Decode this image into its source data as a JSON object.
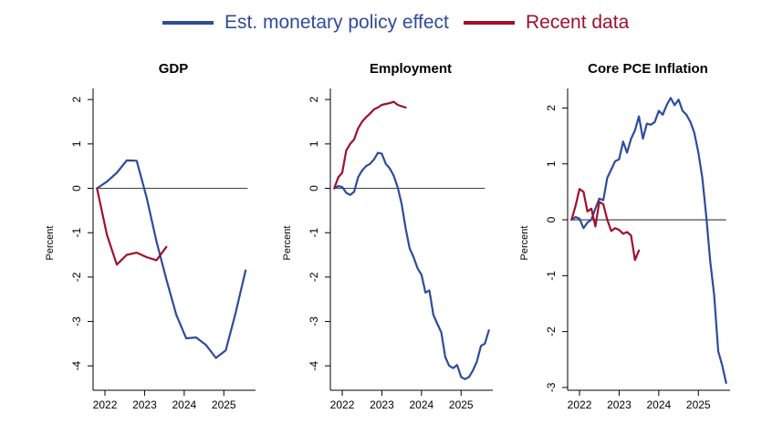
{
  "legend": {
    "policy_label": "Est. monetary policy effect",
    "recent_label": "Recent data",
    "policy_color": "#2E4B9C",
    "recent_color": "#A0102C"
  },
  "chart_data": [
    {
      "type": "line",
      "title": "GDP",
      "ylabel": "Percent",
      "ylim": [
        -4.55,
        2.25
      ],
      "xlim": [
        2021.7,
        2025.8
      ],
      "yticks": [
        2,
        1,
        0,
        -1,
        -2,
        -3,
        -4
      ],
      "ytick_labels": [
        "2",
        "1",
        "0",
        "-1",
        "-2",
        "-3",
        "-4"
      ],
      "xticks": [
        2022,
        2023,
        2024,
        2025
      ],
      "xtick_labels": [
        "2022",
        "2023",
        "2024",
        "2025"
      ],
      "zero_line": [
        2021.8,
        2025.6
      ],
      "series": [
        {
          "name": "Est. monetary policy effect",
          "x": [
            2021.8,
            2022.05,
            2022.3,
            2022.55,
            2022.8,
            2023.05,
            2023.3,
            2023.55,
            2023.8,
            2024.05,
            2024.3,
            2024.55,
            2024.8,
            2025.05,
            2025.3,
            2025.55
          ],
          "y": [
            0,
            0.15,
            0.35,
            0.63,
            0.62,
            -0.2,
            -1.2,
            -2.05,
            -2.85,
            -3.38,
            -3.36,
            -3.53,
            -3.82,
            -3.65,
            -2.8,
            -1.85
          ]
        },
        {
          "name": "Recent data",
          "x": [
            2021.8,
            2022.05,
            2022.3,
            2022.55,
            2022.8,
            2023.05,
            2023.3,
            2023.55
          ],
          "y": [
            0,
            -1.05,
            -1.72,
            -1.5,
            -1.45,
            -1.55,
            -1.62,
            -1.32
          ]
        }
      ]
    },
    {
      "type": "line",
      "title": "Employment",
      "ylabel": "Percent",
      "ylim": [
        -4.55,
        2.25
      ],
      "xlim": [
        2021.7,
        2025.8
      ],
      "yticks": [
        2,
        1,
        0,
        -1,
        -2,
        -3,
        -4
      ],
      "ytick_labels": [
        "2",
        "1",
        "0",
        "-1",
        "-2",
        "-3",
        "-4"
      ],
      "xticks": [
        2022,
        2023,
        2024,
        2025
      ],
      "xtick_labels": [
        "2022",
        "2023",
        "2024",
        "2025"
      ],
      "zero_line": [
        2021.8,
        2025.6
      ],
      "series": [
        {
          "name": "Est. monetary policy effect",
          "x": [
            2021.8,
            2021.9,
            2022.0,
            2022.1,
            2022.2,
            2022.3,
            2022.4,
            2022.5,
            2022.6,
            2022.7,
            2022.8,
            2022.9,
            2023.0,
            2023.1,
            2023.2,
            2023.3,
            2023.4,
            2023.5,
            2023.6,
            2023.7,
            2023.8,
            2023.9,
            2024.0,
            2024.1,
            2024.2,
            2024.3,
            2024.4,
            2024.5,
            2024.6,
            2024.7,
            2024.8,
            2024.9,
            2025.0,
            2025.1,
            2025.2,
            2025.3,
            2025.4,
            2025.5,
            2025.6,
            2025.7
          ],
          "y": [
            0,
            0.05,
            0.03,
            -0.1,
            -0.15,
            -0.08,
            0.25,
            0.4,
            0.5,
            0.55,
            0.65,
            0.8,
            0.78,
            0.55,
            0.45,
            0.28,
            0.02,
            -0.35,
            -0.9,
            -1.35,
            -1.55,
            -1.8,
            -1.95,
            -2.35,
            -2.3,
            -2.85,
            -3.05,
            -3.25,
            -3.8,
            -4.0,
            -4.05,
            -3.98,
            -4.25,
            -4.3,
            -4.25,
            -4.1,
            -3.9,
            -3.55,
            -3.5,
            -3.2
          ]
        },
        {
          "name": "Recent data",
          "x": [
            2021.8,
            2021.9,
            2022.0,
            2022.1,
            2022.2,
            2022.3,
            2022.4,
            2022.5,
            2022.6,
            2022.7,
            2022.8,
            2022.9,
            2023.0,
            2023.1,
            2023.2,
            2023.3,
            2023.4,
            2023.5,
            2023.6
          ],
          "y": [
            0,
            0.25,
            0.35,
            0.85,
            1.0,
            1.1,
            1.35,
            1.5,
            1.6,
            1.68,
            1.78,
            1.82,
            1.88,
            1.9,
            1.92,
            1.95,
            1.88,
            1.85,
            1.82
          ]
        }
      ]
    },
    {
      "type": "line",
      "title": "Core PCE Inflation",
      "ylabel": "Percent",
      "ylim": [
        -3.05,
        2.35
      ],
      "xlim": [
        2021.7,
        2025.8
      ],
      "yticks": [
        2,
        1,
        0,
        -1,
        -2,
        -3
      ],
      "ytick_labels": [
        "2",
        "1",
        "0",
        "-1",
        "-2",
        "-3"
      ],
      "xticks": [
        2022,
        2023,
        2024,
        2025
      ],
      "xtick_labels": [
        "2022",
        "2023",
        "2024",
        "2025"
      ],
      "zero_line": [
        2021.8,
        2025.7
      ],
      "series": [
        {
          "name": "Est. monetary policy effect",
          "x": [
            2021.8,
            2021.9,
            2022.0,
            2022.1,
            2022.2,
            2022.3,
            2022.4,
            2022.5,
            2022.6,
            2022.7,
            2022.8,
            2022.9,
            2023.0,
            2023.1,
            2023.2,
            2023.3,
            2023.4,
            2023.5,
            2023.6,
            2023.7,
            2023.8,
            2023.9,
            2024.0,
            2024.1,
            2024.2,
            2024.3,
            2024.4,
            2024.5,
            2024.6,
            2024.7,
            2024.8,
            2024.9,
            2025.0,
            2025.1,
            2025.2,
            2025.3,
            2025.4,
            2025.5,
            2025.6,
            2025.7
          ],
          "y": [
            0,
            0.05,
            0.02,
            -0.15,
            -0.05,
            0.0,
            0.2,
            0.38,
            0.35,
            0.75,
            0.9,
            1.05,
            1.08,
            1.4,
            1.2,
            1.45,
            1.6,
            1.85,
            1.45,
            1.72,
            1.7,
            1.75,
            1.95,
            1.88,
            2.05,
            2.18,
            2.05,
            2.15,
            1.95,
            1.88,
            1.75,
            1.55,
            1.2,
            0.75,
            0.05,
            -0.75,
            -1.35,
            -2.35,
            -2.6,
            -2.92
          ]
        },
        {
          "name": "Recent data",
          "x": [
            2021.8,
            2021.9,
            2022.0,
            2022.1,
            2022.2,
            2022.3,
            2022.4,
            2022.5,
            2022.6,
            2022.7,
            2022.8,
            2022.9,
            2023.0,
            2023.1,
            2023.2,
            2023.3,
            2023.4,
            2023.5
          ],
          "y": [
            0,
            0.25,
            0.55,
            0.5,
            0.15,
            0.2,
            -0.12,
            0.32,
            0.28,
            0.0,
            -0.2,
            -0.15,
            -0.18,
            -0.25,
            -0.22,
            -0.28,
            -0.72,
            -0.55
          ]
        }
      ]
    }
  ]
}
